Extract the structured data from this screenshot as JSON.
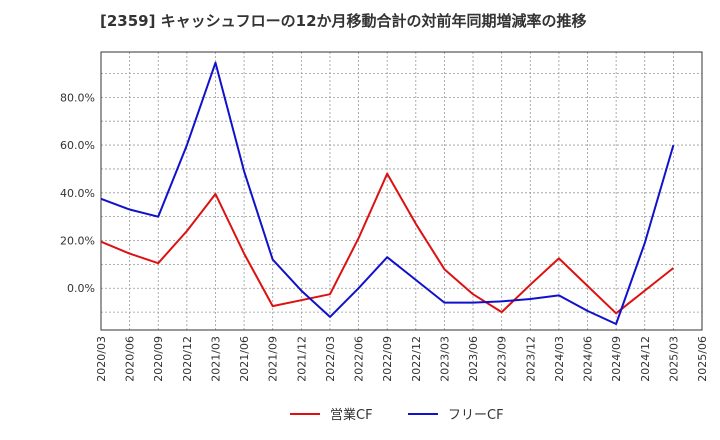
{
  "chart_data": {
    "type": "line",
    "title": "[2359]  キャッシュフローの12か月移動合計の対前年同期増減率の推移",
    "x": [
      "2020/03",
      "2020/06",
      "2020/09",
      "2020/12",
      "2021/03",
      "2021/06",
      "2021/09",
      "2021/12",
      "2022/03",
      "2022/06",
      "2022/09",
      "2022/12",
      "2023/03",
      "2023/06",
      "2023/09",
      "2023/12",
      "2024/03",
      "2024/06",
      "2024/09",
      "2024/12",
      "2025/03",
      "2025/06"
    ],
    "series": [
      {
        "name": "営業CF",
        "color": "#dd1111",
        "values": [
          19.5,
          14.5,
          10.5,
          24.0,
          39.5,
          14.5,
          -7.5,
          -5.0,
          -2.5,
          21.0,
          48.0,
          27.0,
          8.0,
          -2.5,
          -10.0,
          1.5,
          12.5,
          1.0,
          -10.5,
          -1.0,
          8.5,
          null
        ]
      },
      {
        "name": "フリーCF",
        "color": "#1111cc",
        "values": [
          37.5,
          33.0,
          30.0,
          60.0,
          94.5,
          49.0,
          12.0,
          -1.0,
          -12.0,
          0.0,
          13.0,
          3.5,
          -6.0,
          -6.0,
          -5.5,
          -4.5,
          -3.0,
          -9.5,
          -15.0,
          19.0,
          60.0,
          null
        ]
      }
    ],
    "yticks": [
      "0.0%",
      "20.0%",
      "40.0%",
      "60.0%",
      "80.0%"
    ],
    "ytick_values": [
      0,
      20,
      40,
      60,
      80
    ],
    "ylim": [
      -17.5,
      99.0
    ],
    "grid": true,
    "legend": "bottom-center"
  }
}
